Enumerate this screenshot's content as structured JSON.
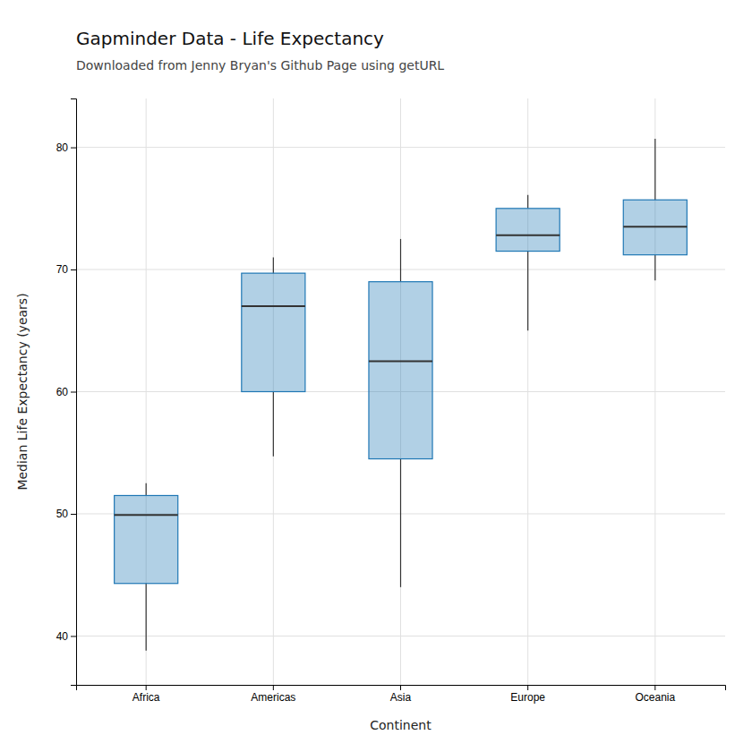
{
  "chart_data": {
    "type": "box",
    "title": "Gapminder Data - Life Expectancy",
    "subtitle": "Downloaded from Jenny Bryan's Github Page using getURL",
    "xlabel": "Continent",
    "ylabel": "Median Life Expectancy (years)",
    "categories": [
      "Africa",
      "Americas",
      "Asia",
      "Europe",
      "Oceania"
    ],
    "boxes": [
      {
        "whislo": 38.8,
        "q1": 44.3,
        "med": 49.9,
        "q3": 51.5,
        "whishi": 52.5
      },
      {
        "whislo": 54.7,
        "q1": 60.0,
        "med": 67.0,
        "q3": 69.7,
        "whishi": 71.0
      },
      {
        "whislo": 44.0,
        "q1": 54.5,
        "med": 62.5,
        "q3": 69.0,
        "whishi": 72.5
      },
      {
        "whislo": 65.0,
        "q1": 71.5,
        "med": 72.8,
        "q3": 75.0,
        "whishi": 76.1
      },
      {
        "whislo": 69.1,
        "q1": 71.2,
        "med": 73.5,
        "q3": 75.7,
        "whishi": 80.7
      }
    ],
    "ylim": [
      36,
      84
    ],
    "yticks": [
      40,
      50,
      60,
      70,
      80
    ],
    "grid": true
  }
}
